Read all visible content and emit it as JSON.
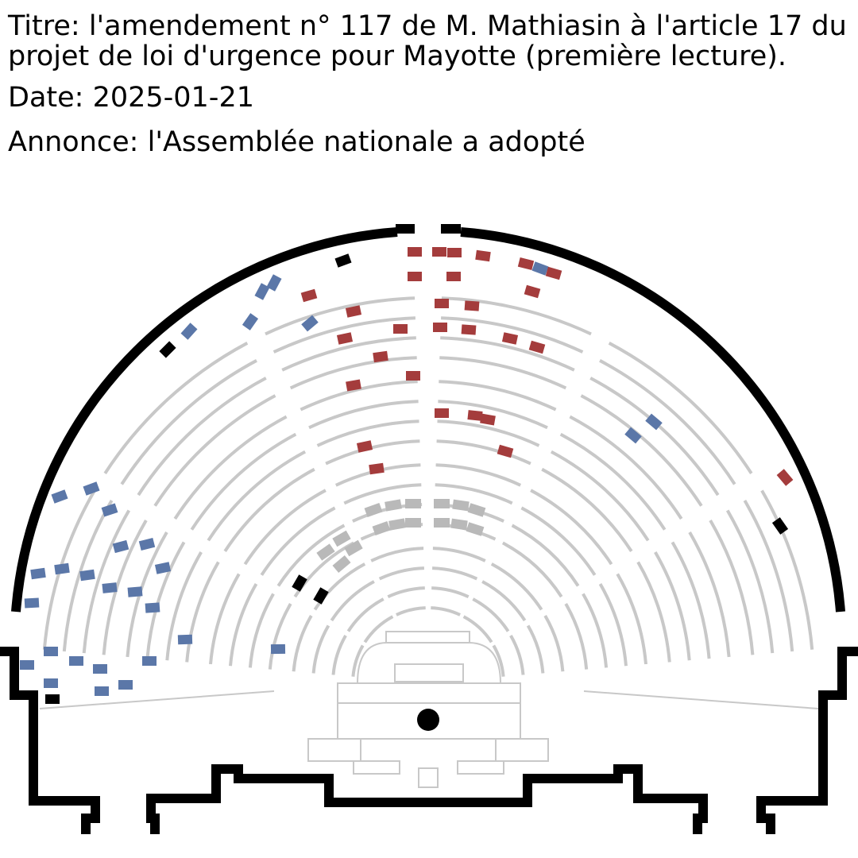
{
  "vote": {
    "title": "Titre: l'amendement n° 117 de M. Mathiasin à l'article 17 du projet de loi d'urgence pour Mayotte (première lecture).",
    "date": "Date: 2025-01-21",
    "announcement": "Annonce: l'Assemblée nationale a adopté"
  },
  "legend_colors": {
    "seat_empty": "#c8c8c8",
    "vote_pour": "#a43c3c",
    "vote_contre": "#5b77a8",
    "vote_abstention": "#000000",
    "government_bench": "#b9b9b9",
    "walls": "#000000"
  }
}
